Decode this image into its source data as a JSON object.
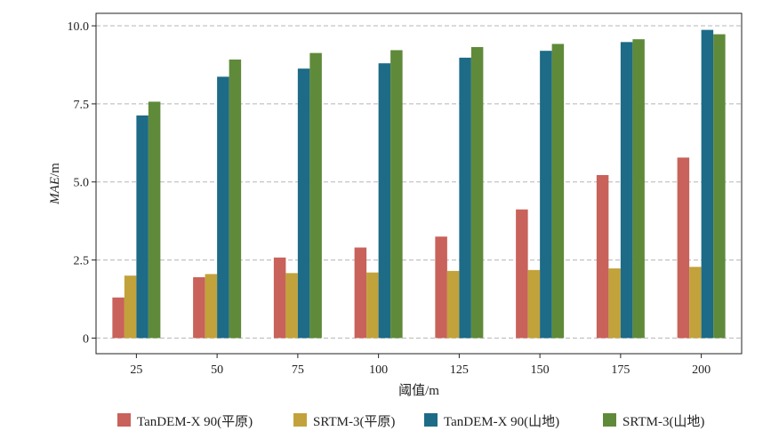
{
  "chart_data": {
    "type": "bar",
    "title": "",
    "xlabel": "阈值/m",
    "ylabel": "MAE/m",
    "ylabel_italic_part": "MAE",
    "ylabel_unit_part": "/m",
    "categories": [
      "25",
      "50",
      "75",
      "100",
      "125",
      "150",
      "175",
      "200"
    ],
    "ylim": [
      -0.5,
      10.4
    ],
    "yticks": [
      0,
      2.5,
      5.0,
      7.5,
      10.0
    ],
    "ytick_labels": [
      "0",
      "2.5",
      "5.0",
      "7.5",
      "10.0"
    ],
    "grid": "horizontal dashed",
    "legend_position": "bottom",
    "series": [
      {
        "name": "TanDEM-X 90(平原)",
        "color": "#c8625a",
        "values": [
          1.3,
          1.95,
          2.58,
          2.9,
          3.25,
          4.12,
          5.22,
          5.78
        ]
      },
      {
        "name": "SRTM-3(平原)",
        "color": "#c2a23a",
        "values": [
          2.0,
          2.05,
          2.08,
          2.1,
          2.15,
          2.18,
          2.23,
          2.28
        ]
      },
      {
        "name": "TanDEM-X 90(山地)",
        "color": "#1d6b86",
        "values": [
          7.13,
          8.37,
          8.63,
          8.8,
          8.98,
          9.2,
          9.48,
          9.87
        ]
      },
      {
        "name": "SRTM-3(山地)",
        "color": "#5f8a3a",
        "values": [
          7.57,
          8.92,
          9.13,
          9.22,
          9.32,
          9.42,
          9.57,
          9.73
        ]
      }
    ]
  }
}
